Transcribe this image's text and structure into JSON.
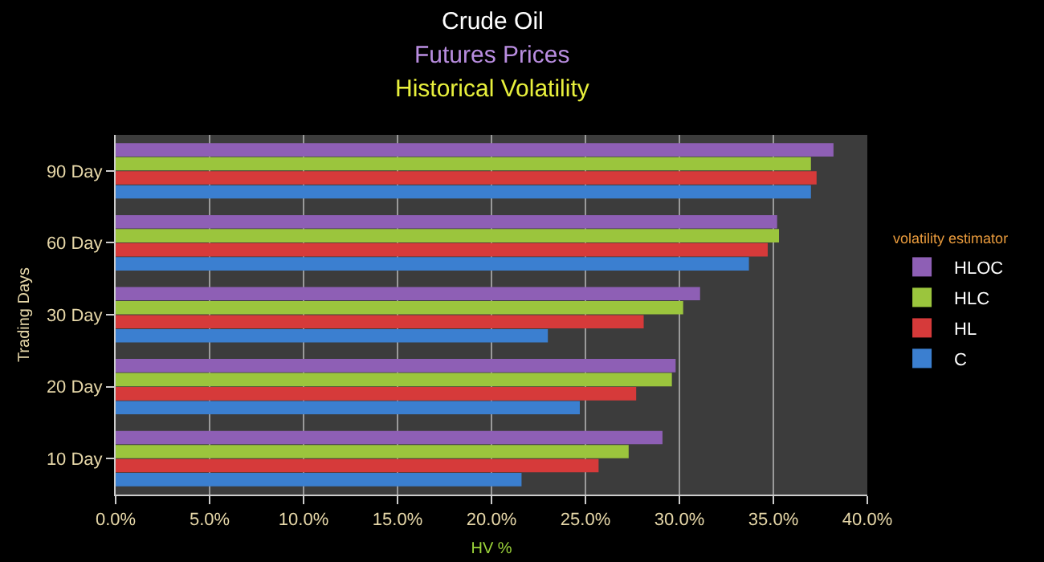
{
  "chart_data": {
    "type": "bar",
    "orientation": "horizontal",
    "title": "Crude Oil",
    "subtitle": "Futures Prices",
    "annotations": [
      "Historical Volatility"
    ],
    "xlabel": "HV %",
    "ylabel": "Trading Days",
    "legend_title": "volatility estimator",
    "legend": "right",
    "grid": "x",
    "categories": [
      "90 Day",
      "60 Day",
      "30 Day",
      "20 Day",
      "10 Day"
    ],
    "xlim": [
      0,
      40
    ],
    "xticks": [
      {
        "value": 0,
        "label": "0.0%"
      },
      {
        "value": 5,
        "label": "5.0%"
      },
      {
        "value": 10,
        "label": "10.0%"
      },
      {
        "value": 15,
        "label": "15.0%"
      },
      {
        "value": 20,
        "label": "20.0%"
      },
      {
        "value": 25,
        "label": "25.0%"
      },
      {
        "value": 30,
        "label": "30.0%"
      },
      {
        "value": 35,
        "label": "35.0%"
      },
      {
        "value": 40,
        "label": "40.0%"
      }
    ],
    "series": [
      {
        "name": "HLOC",
        "color": "#8e5fb5",
        "values": [
          38.2,
          35.2,
          31.1,
          29.8,
          29.1
        ]
      },
      {
        "name": "HLC",
        "color": "#9bc53d",
        "values": [
          37.0,
          35.3,
          30.2,
          29.6,
          27.3
        ]
      },
      {
        "name": "HL",
        "color": "#d63a3a",
        "values": [
          37.3,
          34.7,
          28.1,
          27.7,
          25.7
        ]
      },
      {
        "name": "C",
        "color": "#3b7fd0",
        "values": [
          37.0,
          33.7,
          23.0,
          24.7,
          21.6
        ]
      }
    ]
  }
}
